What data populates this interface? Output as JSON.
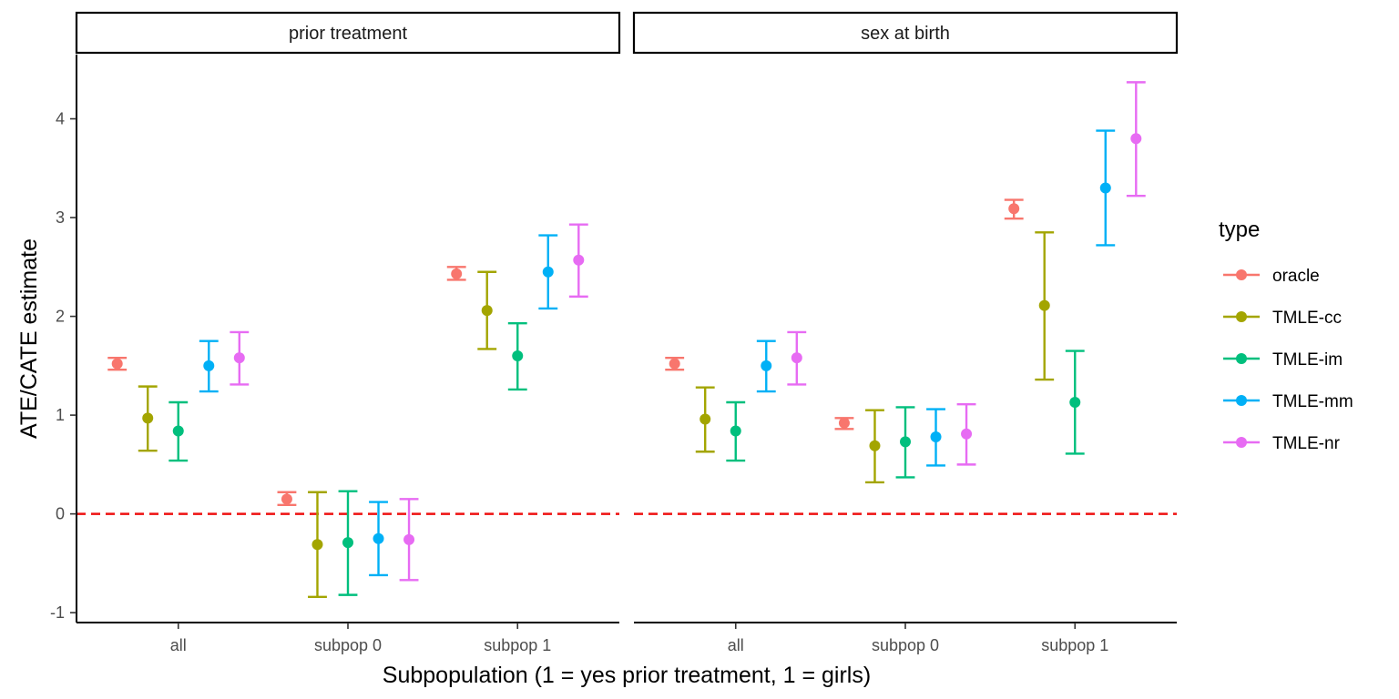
{
  "chart_data": {
    "type": "scatter",
    "variant": "pointrange-errorbar, faceted",
    "ylabel": "ATE/CATE estimate",
    "xlabel": "Subpopulation (1 = yes prior treatment, 1 = girls)",
    "ylim": [
      -1.1,
      4.65
    ],
    "yticks": [
      -1,
      0,
      1,
      2,
      3,
      4
    ],
    "categories": [
      "all",
      "subpop 0",
      "subpop 1"
    ],
    "reference_line": {
      "y": 0,
      "color": "#EE1111",
      "style": "dashed"
    },
    "grid": false,
    "legend": {
      "title": "type",
      "position": "right",
      "entries": [
        "oracle",
        "TMLE-cc",
        "TMLE-im",
        "TMLE-mm",
        "TMLE-nr"
      ]
    },
    "colors": {
      "oracle": "#F8766D",
      "TMLE-cc": "#A3A500",
      "TMLE-im": "#00BF7D",
      "TMLE-mm": "#00B0F6",
      "TMLE-nr": "#E76BF3"
    },
    "panels": [
      {
        "title": "prior treatment",
        "series": [
          {
            "name": "oracle",
            "estimate": [
              1.52,
              0.15,
              2.43
            ],
            "lower": [
              1.46,
              0.09,
              2.37
            ],
            "upper": [
              1.58,
              0.22,
              2.5
            ]
          },
          {
            "name": "TMLE-cc",
            "estimate": [
              0.97,
              -0.31,
              2.06
            ],
            "lower": [
              0.64,
              -0.84,
              1.67
            ],
            "upper": [
              1.29,
              0.22,
              2.45
            ]
          },
          {
            "name": "TMLE-im",
            "estimate": [
              0.84,
              -0.29,
              1.6
            ],
            "lower": [
              0.54,
              -0.82,
              1.26
            ],
            "upper": [
              1.13,
              0.23,
              1.93
            ]
          },
          {
            "name": "TMLE-mm",
            "estimate": [
              1.5,
              -0.25,
              2.45
            ],
            "lower": [
              1.24,
              -0.62,
              2.08
            ],
            "upper": [
              1.75,
              0.12,
              2.82
            ]
          },
          {
            "name": "TMLE-nr",
            "estimate": [
              1.58,
              -0.26,
              2.57
            ],
            "lower": [
              1.31,
              -0.67,
              2.2
            ],
            "upper": [
              1.84,
              0.15,
              2.93
            ]
          }
        ]
      },
      {
        "title": "sex at birth",
        "series": [
          {
            "name": "oracle",
            "estimate": [
              1.52,
              0.92,
              3.09
            ],
            "lower": [
              1.46,
              0.86,
              2.99
            ],
            "upper": [
              1.58,
              0.97,
              3.18
            ]
          },
          {
            "name": "TMLE-cc",
            "estimate": [
              0.96,
              0.69,
              2.11
            ],
            "lower": [
              0.63,
              0.32,
              1.36
            ],
            "upper": [
              1.28,
              1.05,
              2.85
            ]
          },
          {
            "name": "TMLE-im",
            "estimate": [
              0.84,
              0.73,
              1.13
            ],
            "lower": [
              0.54,
              0.37,
              0.61
            ],
            "upper": [
              1.13,
              1.08,
              1.65
            ]
          },
          {
            "name": "TMLE-mm",
            "estimate": [
              1.5,
              0.78,
              3.3
            ],
            "lower": [
              1.24,
              0.49,
              2.72
            ],
            "upper": [
              1.75,
              1.06,
              3.88
            ]
          },
          {
            "name": "TMLE-nr",
            "estimate": [
              1.58,
              0.81,
              3.8
            ],
            "lower": [
              1.31,
              0.5,
              3.22
            ],
            "upper": [
              1.84,
              1.11,
              4.37
            ]
          }
        ]
      }
    ]
  }
}
